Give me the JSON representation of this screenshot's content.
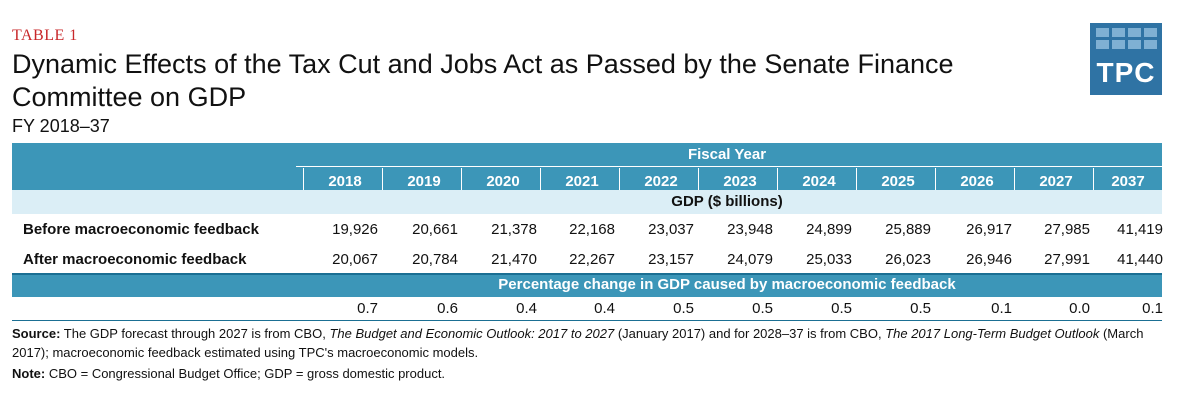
{
  "header": {
    "table_label": "TABLE 1",
    "title": "Dynamic Effects of the Tax Cut and Jobs Act as Passed by the Senate Finance Committee on GDP",
    "subtitle": "FY 2018–37"
  },
  "logo": {
    "text": "TPC",
    "color": "#2f73a4"
  },
  "table": {
    "group_header": "Fiscal Year",
    "years": [
      "2018",
      "2019",
      "2020",
      "2021",
      "2022",
      "2023",
      "2024",
      "2025",
      "2026",
      "2027",
      "2037"
    ],
    "gdp_section": "GDP ($ billions)",
    "rows": [
      {
        "label": "Before macroeconomic feedback",
        "values": [
          "19,926",
          "20,661",
          "21,378",
          "22,168",
          "23,037",
          "23,948",
          "24,899",
          "25,889",
          "26,917",
          "27,985",
          "41,419"
        ]
      },
      {
        "label": "After macroeconomic feedback",
        "values": [
          "20,067",
          "20,784",
          "21,470",
          "22,267",
          "23,157",
          "24,079",
          "25,033",
          "26,023",
          "26,946",
          "27,991",
          "41,440"
        ]
      }
    ],
    "pct_section": "Percentage change in GDP caused by macroeconomic feedback",
    "pct_values": [
      "0.7",
      "0.6",
      "0.4",
      "0.4",
      "0.5",
      "0.5",
      "0.5",
      "0.5",
      "0.1",
      "0.0",
      "0.1"
    ]
  },
  "notes": {
    "source_label": "Source:",
    "source_part1": " The GDP forecast through 2027 is from CBO, ",
    "source_title1": "The Budget and Economic Outlook: 2017 to 2027",
    "source_part2": " (January 2017) and for 2028–37 is from CBO, ",
    "source_title2": "The 2017 Long-Term Budget Outlook",
    "source_part3": " (March 2017); macroeconomic feedback estimated using TPC's macroeconomic models.",
    "note_label": "Note:",
    "note_text": " CBO = Congressional Budget Office; GDP = gross domestic product."
  },
  "colors": {
    "header_band": "#3c96b8",
    "light_band": "#dbeef6",
    "accent_red": "#c8282b",
    "rule": "#1b6f93"
  }
}
